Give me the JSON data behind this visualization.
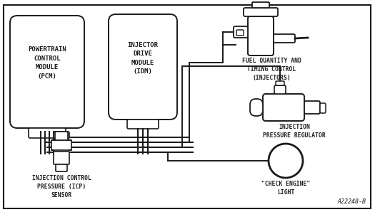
{
  "line_color": "#1a1a1a",
  "fig_width": 5.25,
  "fig_height": 2.98,
  "dpi": 100,
  "ref_text": "A22248-B",
  "pcm_label": "POWERTRAIN\nCONTROL\nMODULE\n(PCM)",
  "idm_label": "INJECTOR\nDRIVE\nMODULE\n(IDM)",
  "injector_label": "FUEL QUANTITY AND\nTIMING CONTROL\n(INJECTORS)",
  "ipr_label": "INJECTION\nPRESSURE REGULATOR",
  "cel_label": "\"CHECK ENGINE\"\nLIGHT",
  "icp_label": "INJECTION CONTROL\nPRESSURE (ICP)\nSENSOR"
}
